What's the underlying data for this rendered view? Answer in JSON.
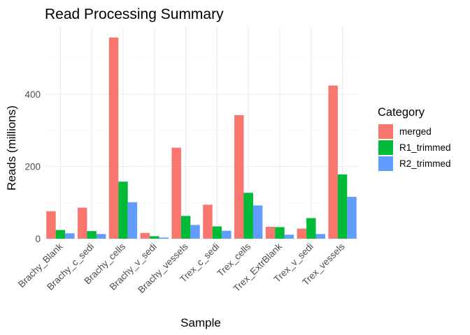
{
  "chart_data": {
    "type": "bar",
    "title": "Read Processing Summary",
    "xlabel": "Sample",
    "ylabel": "Reads (millions)",
    "categories": [
      "Brachy_Blank",
      "Brachy_c_sedi",
      "Brachy_cells",
      "Brachy_v_sedi",
      "Brachy_vessels",
      "Trex_c_sedi",
      "Trex_cells",
      "Trex_ExtrBlank",
      "Trex_v_sedi",
      "Trex_vessels"
    ],
    "series": [
      {
        "name": "merged",
        "color": "#F8766D",
        "values": [
          76,
          86,
          557,
          16,
          252,
          94,
          342,
          33,
          28,
          424
        ]
      },
      {
        "name": "R1_trimmed",
        "color": "#00BA38",
        "values": [
          24,
          21,
          158,
          7,
          63,
          34,
          127,
          32,
          57,
          178
        ]
      },
      {
        "name": "R2_trimmed",
        "color": "#619CFF",
        "values": [
          15,
          13,
          101,
          3,
          38,
          22,
          92,
          11,
          13,
          116
        ]
      }
    ],
    "ylim": [
      0,
      580
    ],
    "yticks": [
      0,
      200,
      400
    ],
    "legend": {
      "title": "Category",
      "position": "right"
    },
    "grid": true
  }
}
